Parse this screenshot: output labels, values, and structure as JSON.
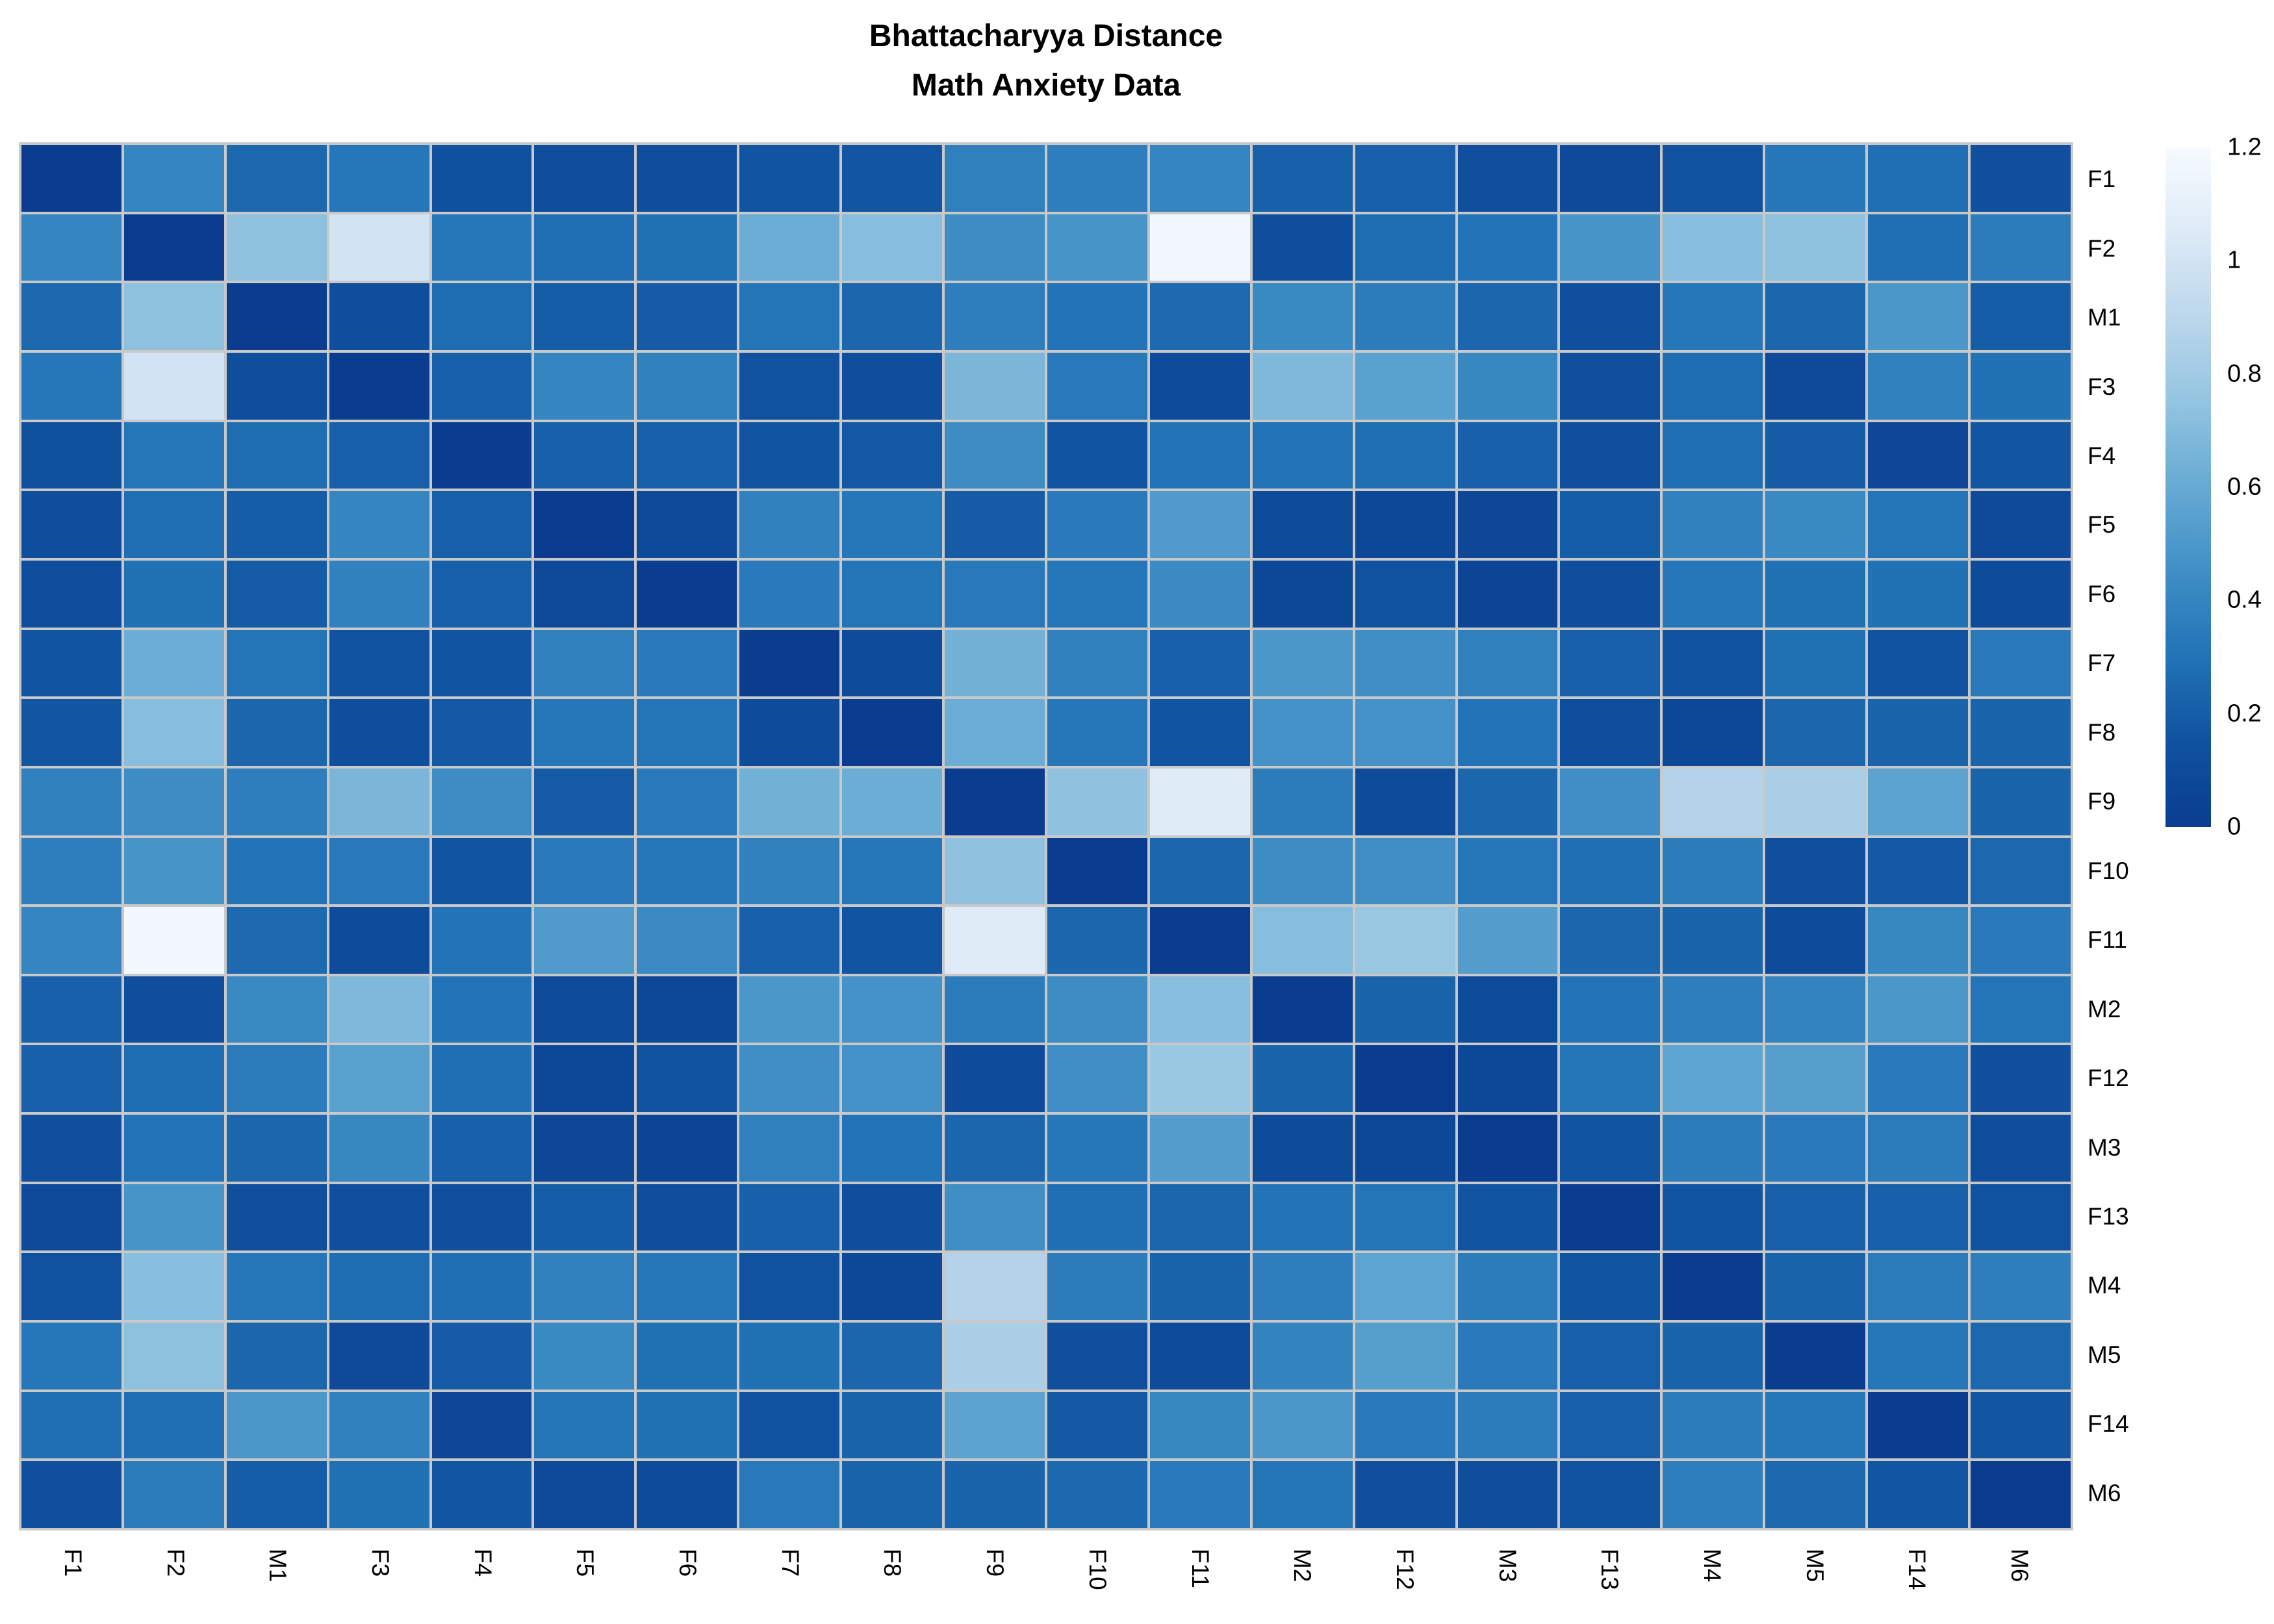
{
  "title": {
    "line1": "Bhattacharyya Distance",
    "line2": "Math Anxiety Data"
  },
  "chart_data": {
    "type": "heatmap",
    "title": "Bhattacharyya Distance",
    "subtitle": "Math Anxiety Data",
    "categories": [
      "F1",
      "F2",
      "M1",
      "F3",
      "F4",
      "F5",
      "F6",
      "F7",
      "F8",
      "F9",
      "F10",
      "F11",
      "M2",
      "F12",
      "M3",
      "F13",
      "M4",
      "M5",
      "F14",
      "M6"
    ],
    "row_labels_position": "right",
    "col_labels_position": "bottom",
    "col_label_rotation_deg": 90,
    "value_domain": [
      0,
      1.2
    ],
    "matrix": [
      [
        0.0,
        0.4,
        0.25,
        0.32,
        0.14,
        0.12,
        0.12,
        0.16,
        0.17,
        0.37,
        0.36,
        0.4,
        0.22,
        0.22,
        0.13,
        0.09,
        0.15,
        0.32,
        0.28,
        0.13
      ],
      [
        0.4,
        0.0,
        0.73,
        1.0,
        0.32,
        0.28,
        0.29,
        0.62,
        0.71,
        0.44,
        0.48,
        1.17,
        0.12,
        0.27,
        0.3,
        0.48,
        0.71,
        0.73,
        0.28,
        0.35
      ],
      [
        0.25,
        0.73,
        0.0,
        0.12,
        0.27,
        0.2,
        0.19,
        0.31,
        0.24,
        0.36,
        0.3,
        0.26,
        0.42,
        0.35,
        0.24,
        0.13,
        0.32,
        0.24,
        0.5,
        0.2
      ],
      [
        0.32,
        1.0,
        0.12,
        0.0,
        0.21,
        0.4,
        0.38,
        0.15,
        0.12,
        0.67,
        0.33,
        0.1,
        0.68,
        0.55,
        0.41,
        0.13,
        0.27,
        0.09,
        0.38,
        0.29
      ],
      [
        0.14,
        0.32,
        0.27,
        0.21,
        0.0,
        0.21,
        0.21,
        0.16,
        0.18,
        0.44,
        0.16,
        0.3,
        0.3,
        0.28,
        0.22,
        0.13,
        0.28,
        0.19,
        0.07,
        0.17
      ],
      [
        0.12,
        0.28,
        0.2,
        0.4,
        0.21,
        0.0,
        0.09,
        0.38,
        0.32,
        0.19,
        0.34,
        0.52,
        0.11,
        0.08,
        0.07,
        0.2,
        0.38,
        0.42,
        0.31,
        0.09
      ],
      [
        0.12,
        0.29,
        0.19,
        0.38,
        0.21,
        0.09,
        0.0,
        0.34,
        0.31,
        0.33,
        0.32,
        0.43,
        0.08,
        0.15,
        0.06,
        0.12,
        0.32,
        0.29,
        0.29,
        0.11
      ],
      [
        0.16,
        0.62,
        0.31,
        0.15,
        0.16,
        0.38,
        0.34,
        0.0,
        0.1,
        0.64,
        0.38,
        0.22,
        0.5,
        0.45,
        0.37,
        0.22,
        0.15,
        0.29,
        0.15,
        0.33
      ],
      [
        0.17,
        0.71,
        0.24,
        0.12,
        0.18,
        0.32,
        0.31,
        0.1,
        0.0,
        0.62,
        0.32,
        0.16,
        0.47,
        0.47,
        0.3,
        0.12,
        0.08,
        0.24,
        0.23,
        0.23
      ],
      [
        0.37,
        0.44,
        0.36,
        0.67,
        0.44,
        0.19,
        0.33,
        0.64,
        0.62,
        0.0,
        0.74,
        1.06,
        0.35,
        0.1,
        0.24,
        0.45,
        0.87,
        0.83,
        0.56,
        0.23
      ],
      [
        0.36,
        0.48,
        0.3,
        0.33,
        0.16,
        0.34,
        0.32,
        0.38,
        0.32,
        0.74,
        0.0,
        0.24,
        0.44,
        0.45,
        0.32,
        0.28,
        0.35,
        0.13,
        0.18,
        0.25
      ],
      [
        0.4,
        1.17,
        0.26,
        0.1,
        0.3,
        0.52,
        0.43,
        0.22,
        0.16,
        1.06,
        0.24,
        0.0,
        0.71,
        0.77,
        0.53,
        0.24,
        0.23,
        0.11,
        0.41,
        0.34
      ],
      [
        0.22,
        0.12,
        0.42,
        0.68,
        0.3,
        0.11,
        0.08,
        0.5,
        0.47,
        0.35,
        0.44,
        0.71,
        0.0,
        0.23,
        0.1,
        0.3,
        0.36,
        0.39,
        0.5,
        0.31
      ],
      [
        0.22,
        0.27,
        0.35,
        0.55,
        0.28,
        0.08,
        0.15,
        0.45,
        0.47,
        0.1,
        0.45,
        0.77,
        0.23,
        0.0,
        0.08,
        0.31,
        0.57,
        0.54,
        0.34,
        0.13
      ],
      [
        0.13,
        0.3,
        0.24,
        0.41,
        0.22,
        0.07,
        0.06,
        0.37,
        0.3,
        0.24,
        0.32,
        0.53,
        0.1,
        0.08,
        0.0,
        0.16,
        0.35,
        0.34,
        0.35,
        0.12
      ],
      [
        0.09,
        0.48,
        0.13,
        0.13,
        0.13,
        0.2,
        0.12,
        0.22,
        0.12,
        0.45,
        0.28,
        0.24,
        0.3,
        0.31,
        0.16,
        0.0,
        0.16,
        0.21,
        0.22,
        0.15
      ],
      [
        0.15,
        0.71,
        0.32,
        0.27,
        0.28,
        0.38,
        0.32,
        0.15,
        0.08,
        0.87,
        0.35,
        0.23,
        0.36,
        0.57,
        0.35,
        0.16,
        0.0,
        0.23,
        0.35,
        0.36
      ],
      [
        0.32,
        0.73,
        0.24,
        0.09,
        0.19,
        0.42,
        0.29,
        0.29,
        0.24,
        0.83,
        0.13,
        0.11,
        0.39,
        0.54,
        0.34,
        0.21,
        0.23,
        0.0,
        0.32,
        0.25
      ],
      [
        0.28,
        0.28,
        0.5,
        0.38,
        0.07,
        0.31,
        0.29,
        0.15,
        0.23,
        0.56,
        0.18,
        0.41,
        0.5,
        0.34,
        0.35,
        0.22,
        0.35,
        0.32,
        0.0,
        0.17
      ],
      [
        0.13,
        0.35,
        0.2,
        0.29,
        0.17,
        0.09,
        0.11,
        0.33,
        0.23,
        0.23,
        0.25,
        0.34,
        0.31,
        0.13,
        0.12,
        0.15,
        0.36,
        0.25,
        0.17,
        0.0
      ]
    ],
    "colormap": {
      "anchors": [
        {
          "value": 0.0,
          "color": "#0a3d8f"
        },
        {
          "value": 0.15,
          "color": "#10529f"
        },
        {
          "value": 0.3,
          "color": "#2273b7"
        },
        {
          "value": 0.45,
          "color": "#3f8ec5"
        },
        {
          "value": 0.6,
          "color": "#66aad3"
        },
        {
          "value": 0.75,
          "color": "#93c4e0"
        },
        {
          "value": 0.9,
          "color": "#bcd7ec"
        },
        {
          "value": 1.05,
          "color": "#ddeaf6"
        },
        {
          "value": 1.2,
          "color": "#f7fbff"
        }
      ]
    },
    "colorbar": {
      "position": "right",
      "ticks": [
        {
          "value": 1.2,
          "label": "1.2"
        },
        {
          "value": 1.0,
          "label": "1"
        },
        {
          "value": 0.8,
          "label": "0.8"
        },
        {
          "value": 0.6,
          "label": "0.6"
        },
        {
          "value": 0.4,
          "label": "0.4"
        },
        {
          "value": 0.2,
          "label": "0.2"
        },
        {
          "value": 0.0,
          "label": "0"
        }
      ]
    },
    "grid_line_color": "#c9c9c9",
    "background_color": "#ffffff",
    "text_color": "#000000"
  }
}
